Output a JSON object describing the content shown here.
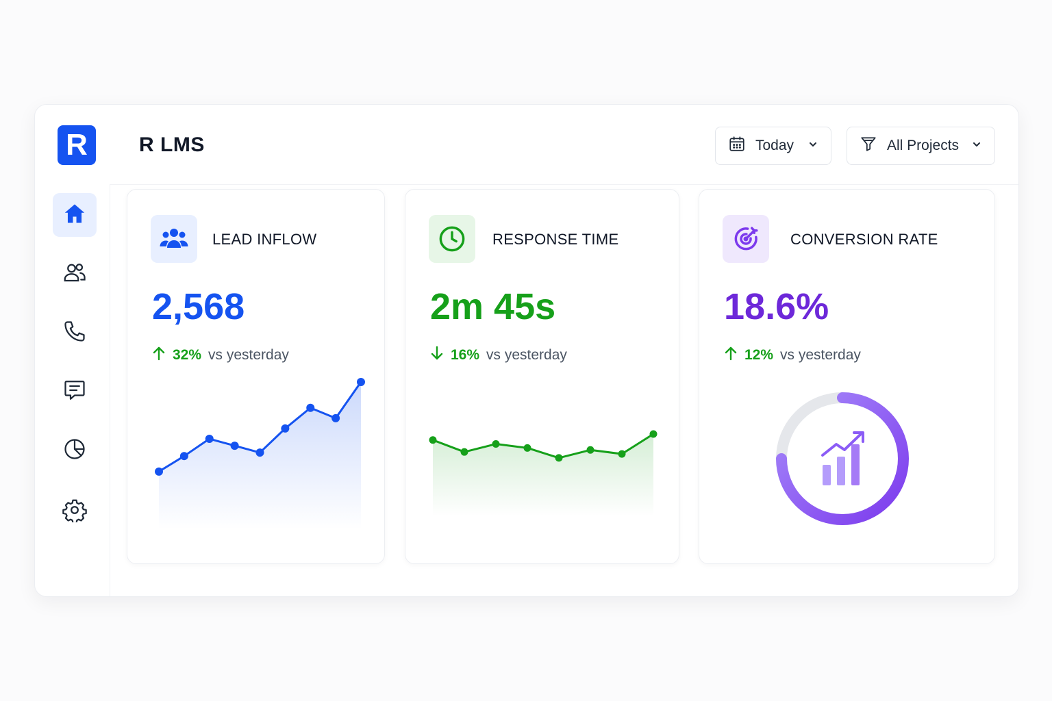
{
  "app": {
    "logo_letter": "R",
    "title": "R LMS"
  },
  "filters": {
    "date": {
      "value": "Today",
      "icon": "calendar-icon"
    },
    "project": {
      "value": "All Projects",
      "icon": "filter-funnel-icon"
    }
  },
  "sidebar": {
    "items": [
      {
        "name": "home",
        "icon": "home-icon",
        "active": true
      },
      {
        "name": "contacts",
        "icon": "users-icon",
        "active": false
      },
      {
        "name": "calls",
        "icon": "phone-icon",
        "active": false
      },
      {
        "name": "messages",
        "icon": "chat-icon",
        "active": false
      },
      {
        "name": "reports",
        "icon": "pie-chart-icon",
        "active": false
      },
      {
        "name": "settings",
        "icon": "gear-icon",
        "active": false
      }
    ]
  },
  "colors": {
    "brand": "#1553f0",
    "lead": "#1553f0",
    "response": "#16a01a",
    "conversion": "#7c3aed",
    "positive": "#16a01a"
  },
  "cards": [
    {
      "title": "LEAD INFLOW",
      "icon": "users-group-icon",
      "value": "2,568",
      "delta": {
        "direction": "up",
        "pct": "32%",
        "note": "vs yesterday"
      }
    },
    {
      "title": "RESPONSE TIME",
      "icon": "clock-icon",
      "value": "2m 45s",
      "delta": {
        "direction": "down",
        "pct": "16%",
        "note": "vs yesterday"
      }
    },
    {
      "title": "CONVERSION RATE",
      "icon": "target-icon",
      "value": "18.6%",
      "delta": {
        "direction": "up",
        "pct": "12%",
        "note": "vs yesterday"
      }
    }
  ],
  "chart_data": [
    {
      "type": "area",
      "values": [
        10,
        19,
        29,
        25,
        21,
        35,
        47,
        41,
        62
      ]
    },
    {
      "type": "area",
      "values": [
        30,
        24,
        28,
        26,
        21,
        25,
        23,
        33
      ]
    },
    {
      "type": "pie",
      "progress": 0.75,
      "icon": "trending-up-bars-icon"
    }
  ]
}
